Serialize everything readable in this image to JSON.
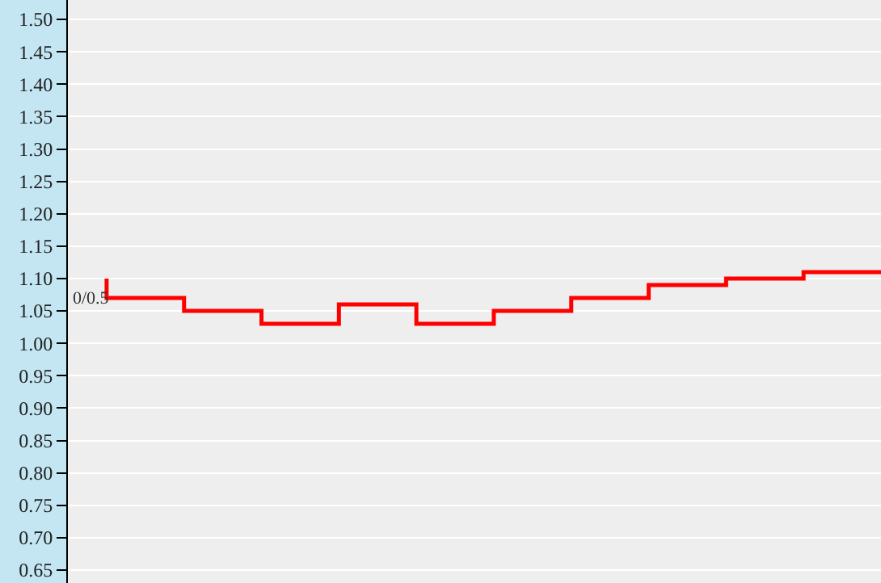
{
  "chart_data": {
    "type": "step",
    "categories": [
      null,
      null,
      null,
      null,
      null,
      null,
      null,
      null,
      null,
      null,
      null
    ],
    "series": [
      {
        "color": "#ff0000",
        "values": [
          1.1,
          1.07,
          1.05,
          1.03,
          1.06,
          1.03,
          1.05,
          1.07,
          1.09,
          1.1,
          1.11
        ]
      }
    ],
    "ylim": [
      0.63,
      1.53
    ],
    "yticks": [
      {
        "value": 0.65,
        "label": "0.65"
      },
      {
        "value": 0.7,
        "label": "0.70"
      },
      {
        "value": 0.75,
        "label": "0.75"
      },
      {
        "value": 0.8,
        "label": "0.80"
      },
      {
        "value": 0.85,
        "label": "0.85"
      },
      {
        "value": 0.9,
        "label": "0.90"
      },
      {
        "value": 0.95,
        "label": "0.95"
      },
      {
        "value": 1.0,
        "label": "1.00"
      },
      {
        "value": 1.05,
        "label": "1.05"
      },
      {
        "value": 1.1,
        "label": "1.10"
      },
      {
        "value": 1.15,
        "label": "1.15"
      },
      {
        "value": 1.2,
        "label": "1.20"
      },
      {
        "value": 1.25,
        "label": "1.25"
      },
      {
        "value": 1.3,
        "label": "1.30"
      },
      {
        "value": 1.35,
        "label": "1.35"
      },
      {
        "value": 1.4,
        "label": "1.40"
      },
      {
        "value": 1.45,
        "label": "1.45"
      },
      {
        "value": 1.5,
        "label": "1.50"
      }
    ],
    "annotations": [
      "0/0.5"
    ],
    "grid": "y",
    "tick_labels": "y",
    "line_style": "solid"
  }
}
